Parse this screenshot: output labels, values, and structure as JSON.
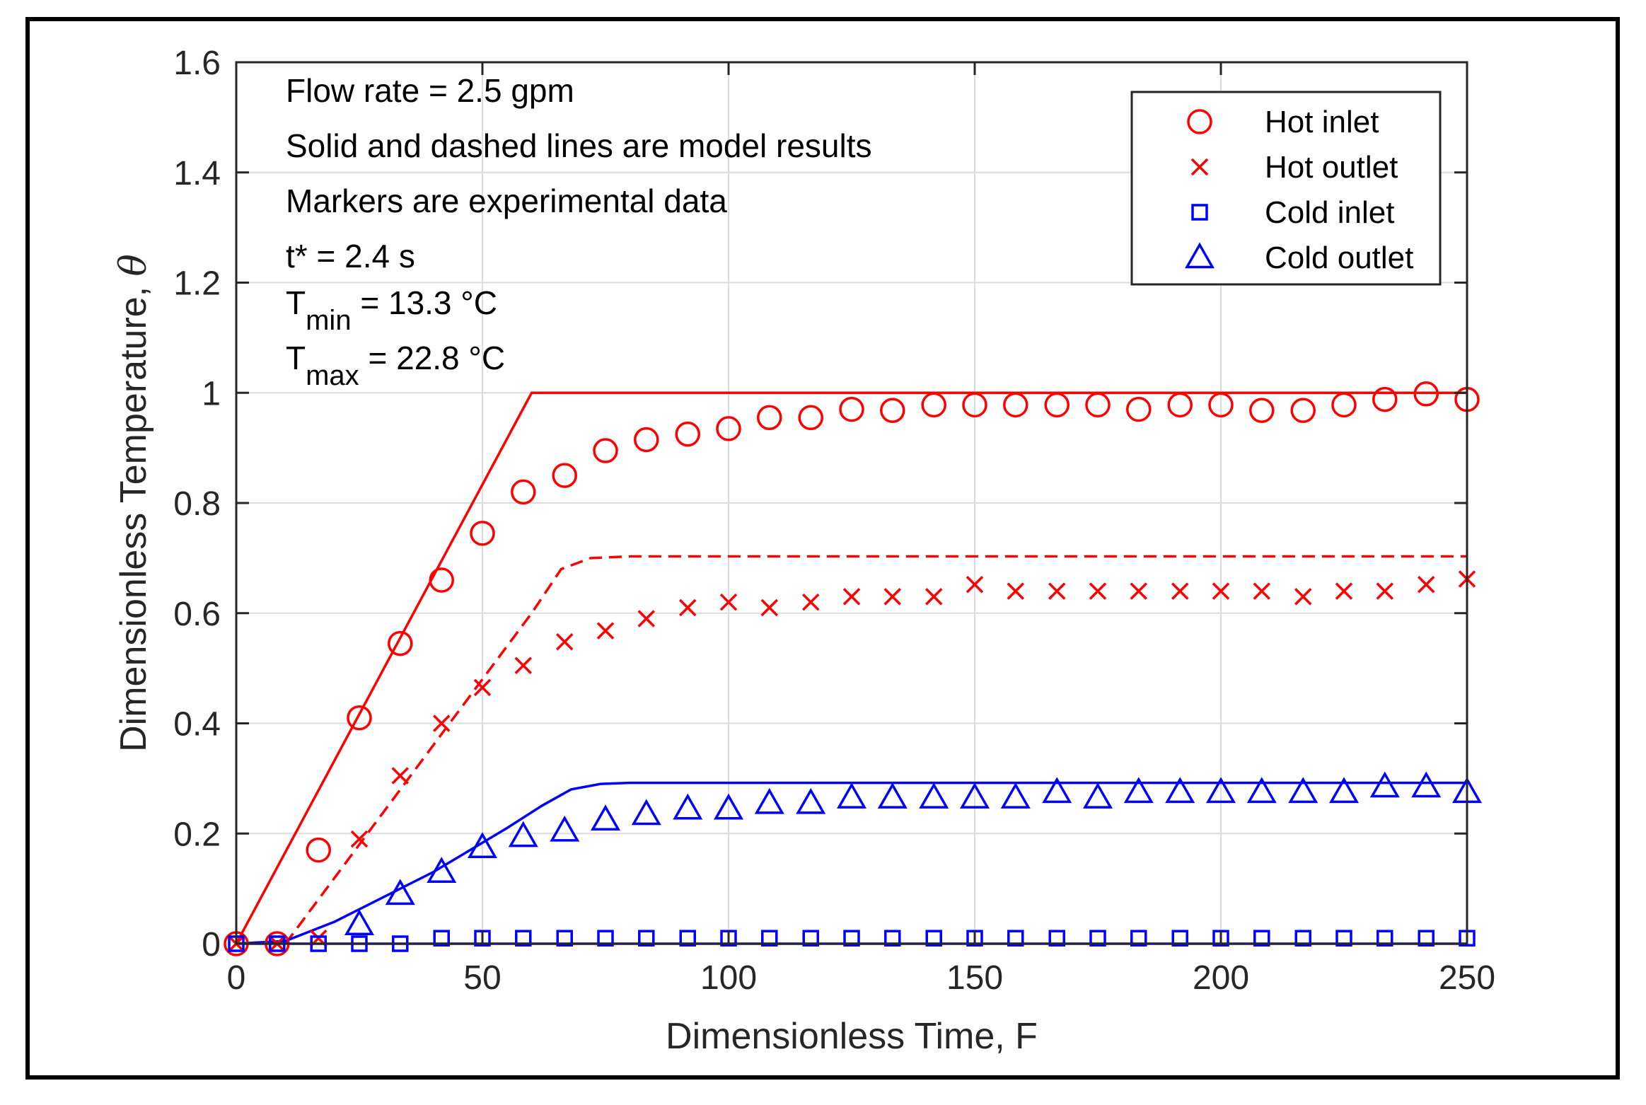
{
  "chart_data": {
    "type": "line",
    "title": "",
    "xlabel": "Dimensionless Time, F",
    "ylabel": "Dimensionless Temperature, ",
    "ylabel_symbol": "θ",
    "xlim": [
      0,
      250
    ],
    "ylim": [
      0,
      1.6
    ],
    "x_ticks": [
      "0",
      "50",
      "100",
      "150",
      "200",
      "250"
    ],
    "y_ticks": [
      "0",
      "0.2",
      "0.4",
      "0.6",
      "0.8",
      "1",
      "1.2",
      "1.4",
      "1.6"
    ],
    "grid": true,
    "legend_position": "top-right",
    "annotations": {
      "flow": "Flow rate = 2.5 gpm",
      "lines": "Solid and dashed lines are model results",
      "markers": "Markers are experimental data",
      "tstar": "t* = 2.4 s",
      "tmin_base": "T",
      "tmin_sub": "min",
      "tmin_val": " = 13.3 °C",
      "tmax_base": "T",
      "tmax_sub": "max",
      "tmax_val": " = 22.8 °C"
    },
    "colors": {
      "hot": "#ff0000",
      "cold": "#0000ff"
    },
    "model_lines": [
      {
        "name": "Hot inlet model",
        "color": "#ff0000",
        "dash": false,
        "points": [
          [
            0,
            0
          ],
          [
            60,
            1
          ],
          [
            250,
            1
          ]
        ]
      },
      {
        "name": "Hot outlet model",
        "color": "#ff0000",
        "dash": true,
        "points": [
          [
            10,
            0
          ],
          [
            60,
            0.6
          ],
          [
            66,
            0.68
          ],
          [
            72,
            0.7
          ],
          [
            80,
            0.703
          ],
          [
            250,
            0.703
          ]
        ]
      },
      {
        "name": "Cold outlet model",
        "color": "#0000ff",
        "dash": false,
        "points": [
          [
            0,
            0
          ],
          [
            10,
            0.005
          ],
          [
            20,
            0.04
          ],
          [
            40,
            0.13
          ],
          [
            55,
            0.21
          ],
          [
            62,
            0.25
          ],
          [
            68,
            0.28
          ],
          [
            74,
            0.29
          ],
          [
            80,
            0.292
          ],
          [
            250,
            0.292
          ]
        ]
      },
      {
        "name": "Cold inlet model",
        "color": "#0000ff",
        "dash": false,
        "points": [
          [
            0,
            0
          ],
          [
            250,
            0
          ]
        ]
      }
    ],
    "series": [
      {
        "name": "Hot inlet",
        "marker": "circle",
        "color": "#ff0000",
        "x": [
          0,
          8.3,
          16.7,
          25,
          33.3,
          41.7,
          50,
          58.3,
          66.7,
          75,
          83.3,
          91.7,
          100,
          108.3,
          116.7,
          125,
          133.3,
          141.7,
          150,
          158.3,
          166.7,
          175,
          183.3,
          191.7,
          200,
          208.3,
          216.7,
          225,
          233.3,
          241.7,
          250
        ],
        "y": [
          0,
          0,
          0.17,
          0.41,
          0.545,
          0.66,
          0.745,
          0.82,
          0.85,
          0.895,
          0.915,
          0.925,
          0.935,
          0.955,
          0.955,
          0.97,
          0.968,
          0.978,
          0.978,
          0.978,
          0.978,
          0.978,
          0.97,
          0.978,
          0.978,
          0.968,
          0.968,
          0.978,
          0.988,
          0.998,
          0.988
        ]
      },
      {
        "name": "Hot outlet",
        "marker": "x",
        "color": "#ff0000",
        "x": [
          0,
          8.3,
          16.7,
          25,
          33.3,
          41.7,
          50,
          58.3,
          66.7,
          75,
          83.3,
          91.7,
          100,
          108.3,
          116.7,
          125,
          133.3,
          141.7,
          150,
          158.3,
          166.7,
          175,
          183.3,
          191.7,
          200,
          208.3,
          216.7,
          225,
          233.3,
          241.7,
          250
        ],
        "y": [
          0,
          0,
          0.01,
          0.19,
          0.305,
          0.4,
          0.465,
          0.505,
          0.548,
          0.568,
          0.59,
          0.61,
          0.62,
          0.61,
          0.62,
          0.63,
          0.63,
          0.63,
          0.652,
          0.64,
          0.64,
          0.64,
          0.64,
          0.64,
          0.64,
          0.64,
          0.63,
          0.64,
          0.64,
          0.652,
          0.662
        ]
      },
      {
        "name": "Cold inlet",
        "marker": "square",
        "color": "#0000ff",
        "x": [
          0,
          8.3,
          16.7,
          25,
          33.3,
          41.7,
          50,
          58.3,
          66.7,
          75,
          83.3,
          91.7,
          100,
          108.3,
          116.7,
          125,
          133.3,
          141.7,
          150,
          158.3,
          166.7,
          175,
          183.3,
          191.7,
          200,
          208.3,
          216.7,
          225,
          233.3,
          241.7,
          250
        ],
        "y": [
          0,
          0,
          0,
          0,
          0,
          0.01,
          0.01,
          0.01,
          0.01,
          0.01,
          0.01,
          0.01,
          0.01,
          0.01,
          0.01,
          0.01,
          0.01,
          0.01,
          0.01,
          0.01,
          0.01,
          0.01,
          0.01,
          0.01,
          0.01,
          0.01,
          0.01,
          0.01,
          0.01,
          0.01,
          0.01
        ]
      },
      {
        "name": "Cold outlet",
        "marker": "triangle",
        "color": "#0000ff",
        "x": [
          25,
          33.3,
          41.7,
          50,
          58.3,
          66.7,
          75,
          83.3,
          91.7,
          100,
          108.3,
          116.7,
          125,
          133.3,
          141.7,
          150,
          158.3,
          166.7,
          175,
          183.3,
          191.7,
          200,
          208.3,
          216.7,
          225,
          233.3,
          241.7,
          250
        ],
        "y": [
          0.035,
          0.09,
          0.13,
          0.175,
          0.195,
          0.205,
          0.225,
          0.235,
          0.245,
          0.245,
          0.255,
          0.255,
          0.265,
          0.265,
          0.265,
          0.265,
          0.265,
          0.275,
          0.265,
          0.275,
          0.275,
          0.275,
          0.275,
          0.275,
          0.275,
          0.285,
          0.285,
          0.275
        ]
      }
    ]
  }
}
